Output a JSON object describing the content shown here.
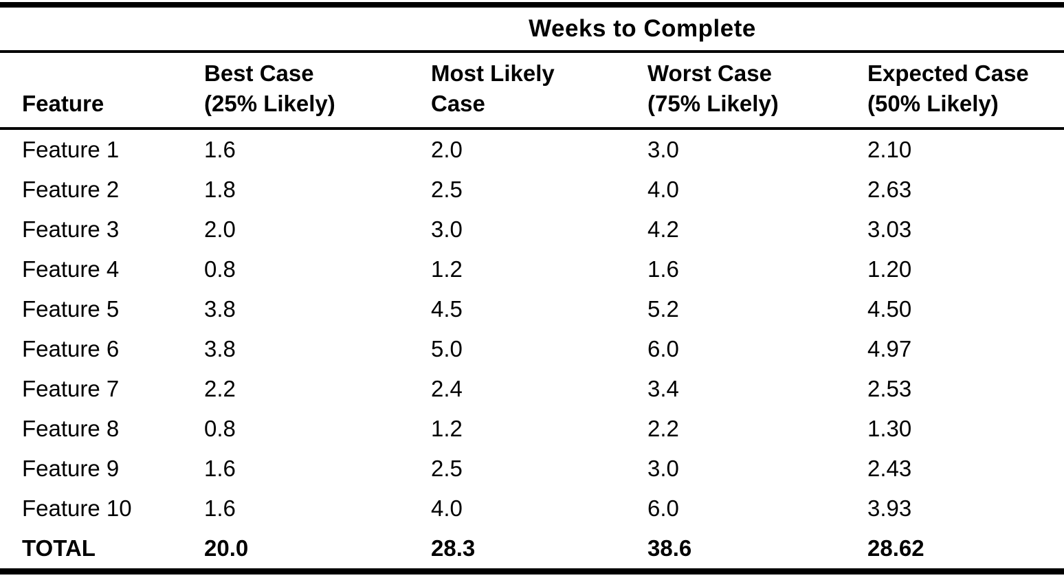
{
  "table": {
    "title": "Weeks to Complete",
    "columns": {
      "feature": "Feature",
      "best_line1": "Best Case",
      "best_line2": "(25% Likely)",
      "most_line1": "Most Likely",
      "most_line2": "Case",
      "worst_line1": "Worst Case",
      "worst_line2": "(75% Likely)",
      "expected_line1": "Expected Case",
      "expected_line2": "(50% Likely)"
    },
    "rows": [
      {
        "feature": "Feature 1",
        "best": "1.6",
        "most": "2.0",
        "worst": "3.0",
        "expected": "2.10"
      },
      {
        "feature": "Feature 2",
        "best": "1.8",
        "most": "2.5",
        "worst": "4.0",
        "expected": "2.63"
      },
      {
        "feature": "Feature 3",
        "best": "2.0",
        "most": "3.0",
        "worst": "4.2",
        "expected": "3.03"
      },
      {
        "feature": "Feature 4",
        "best": "0.8",
        "most": "1.2",
        "worst": "1.6",
        "expected": "1.20"
      },
      {
        "feature": "Feature 5",
        "best": "3.8",
        "most": "4.5",
        "worst": "5.2",
        "expected": "4.50"
      },
      {
        "feature": "Feature 6",
        "best": "3.8",
        "most": "5.0",
        "worst": "6.0",
        "expected": "4.97"
      },
      {
        "feature": "Feature 7",
        "best": "2.2",
        "most": "2.4",
        "worst": "3.4",
        "expected": "2.53"
      },
      {
        "feature": "Feature 8",
        "best": "0.8",
        "most": "1.2",
        "worst": "2.2",
        "expected": "1.30"
      },
      {
        "feature": "Feature 9",
        "best": "1.6",
        "most": "2.5",
        "worst": "3.0",
        "expected": "2.43"
      },
      {
        "feature": "Feature 10",
        "best": "1.6",
        "most": "4.0",
        "worst": "6.0",
        "expected": "3.93"
      }
    ],
    "total": {
      "feature": "TOTAL",
      "best": "20.0",
      "most": "28.3",
      "worst": "38.6",
      "expected": "28.62"
    },
    "colors": {
      "background": "#ffffff",
      "text": "#000000",
      "rule": "#000000"
    }
  }
}
